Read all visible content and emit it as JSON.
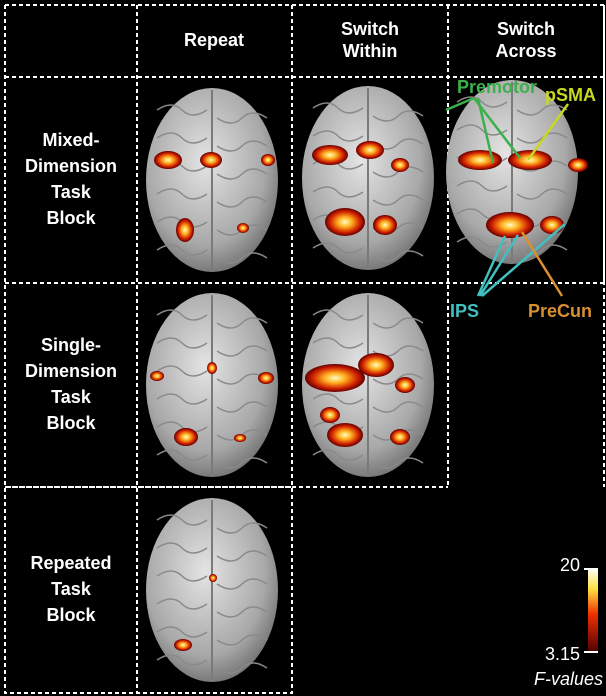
{
  "columns": [
    {
      "lines": [
        "Repeat"
      ]
    },
    {
      "lines": [
        "Switch",
        "Within"
      ]
    },
    {
      "lines": [
        "Switch",
        "Across"
      ]
    }
  ],
  "rows": [
    {
      "lines": [
        "Mixed-",
        "Dimension",
        "Task",
        "Block"
      ]
    },
    {
      "lines": [
        "Single-",
        "Dimension",
        "Task",
        "Block"
      ]
    },
    {
      "lines": [
        "Repeated",
        "Task",
        "Block"
      ]
    }
  ],
  "annotations": {
    "premotor": "Premotor",
    "psma": "pSMA",
    "ips": "IPS",
    "precun": "PreCun"
  },
  "colorbar": {
    "max": 20,
    "min": 3.15,
    "label": "F-values"
  }
}
